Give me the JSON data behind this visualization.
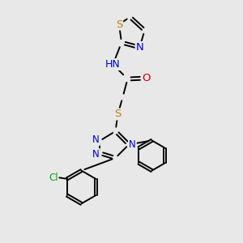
{
  "bg_color": "#e8e8e8",
  "atom_colors": {
    "S": "#b8860b",
    "N": "#0000cc",
    "O": "#cc0000",
    "Cl": "#00aa00",
    "H": "#5a9a9a",
    "C": "#000000"
  },
  "font_size": 8.5,
  "bond_width": 1.4,
  "fig_size": [
    3.0,
    3.0
  ],
  "dpi": 100
}
